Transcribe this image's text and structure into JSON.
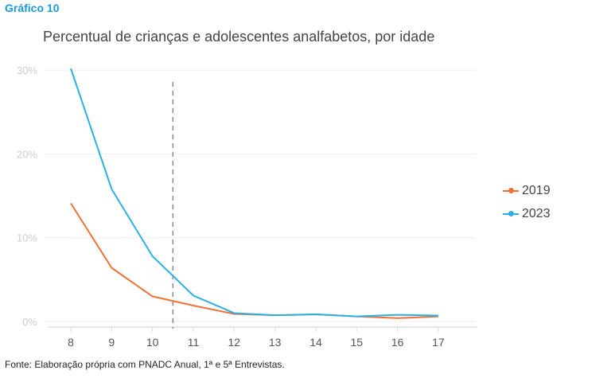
{
  "label": "Gráfico 10",
  "source": "Fonte: Elaboração própria com PNADC Anual, 1ª e 5ª Entrevistas.",
  "chart_data": {
    "type": "line",
    "title": "Percentual de crianças e adolescentes analfabetos, por idade",
    "x": [
      8,
      9,
      10,
      11,
      12,
      13,
      14,
      15,
      16,
      17
    ],
    "x_tick_labels": [
      "8",
      "9",
      "10",
      "11",
      "12",
      "13",
      "14",
      "15",
      "16",
      "17"
    ],
    "y_tick_labels": [
      "0%",
      "10%",
      "20%",
      "30%"
    ],
    "y_ticks": [
      0,
      10,
      20,
      30
    ],
    "ylim": [
      0,
      30
    ],
    "xlim": [
      7.4,
      17.9
    ],
    "reference_line_x": 10.5,
    "legend_position": "right",
    "series": [
      {
        "name": "2019",
        "color": "#f07138",
        "values": [
          14.1,
          6.4,
          3.0,
          1.9,
          0.9,
          0.75,
          0.85,
          0.6,
          0.4,
          0.6
        ]
      },
      {
        "name": "2023",
        "color": "#2cb0e4",
        "values": [
          30.2,
          15.8,
          7.8,
          3.1,
          1.0,
          0.75,
          0.85,
          0.6,
          0.8,
          0.7
        ]
      }
    ]
  }
}
